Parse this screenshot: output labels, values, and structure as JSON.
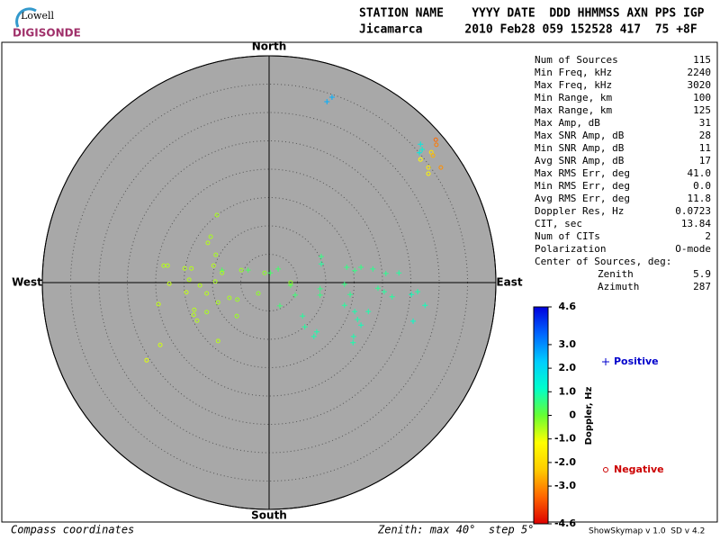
{
  "header": {
    "logo_top": "Lowell",
    "logo_bottom": "DIGISONDE",
    "columns": "STATION NAME    YYYY DATE  DDD HHMMSS AXN PPS IGP",
    "values": "Jicamarca      2010 Feb28 059 152528 417  75 +8F"
  },
  "stats": [
    [
      "Num of Sources",
      "115"
    ],
    [
      "Min Freq, kHz",
      "2240"
    ],
    [
      "Max Freq, kHz",
      "3020"
    ],
    [
      "Min Range, km",
      "100"
    ],
    [
      "Max Range, km",
      "125"
    ],
    [
      "Max Amp, dB",
      "31"
    ],
    [
      "Max SNR Amp, dB",
      "28"
    ],
    [
      "Min SNR Amp, dB",
      "11"
    ],
    [
      "Avg SNR Amp, dB",
      "17"
    ],
    [
      "Max RMS Err, deg",
      "41.0"
    ],
    [
      "Min RMS Err, deg",
      "0.0"
    ],
    [
      "Avg RMS Err, deg",
      "11.8"
    ],
    [
      "Doppler Res, Hz",
      "0.0723"
    ],
    [
      "CIT, sec",
      "13.84"
    ],
    [
      "Num of CITs",
      "2"
    ],
    [
      "Polarization",
      "O-mode"
    ]
  ],
  "center": {
    "title": "Center of Sources, deg:",
    "rows": [
      [
        "Zenith",
        "5.9"
      ],
      [
        "Azimuth",
        "287"
      ]
    ]
  },
  "footer": {
    "left": "Compass coordinates",
    "middle": "Zenith: max 40°  step 5°",
    "right": "ShowSkymap v 1.0  SD v 4.2"
  },
  "chart_data": {
    "type": "skymap",
    "compass": {
      "north": "North",
      "south": "South",
      "west": "West",
      "east": "East"
    },
    "xlim": [
      -40,
      40
    ],
    "ylim": [
      -40,
      40
    ],
    "rticks": [
      5,
      10,
      15,
      20,
      25,
      30,
      35,
      40
    ],
    "colorbar": {
      "label": "Doppler, Hz",
      "lim": [
        -4.6,
        4.6
      ],
      "ticks": [
        4.6,
        {
          "value": 3.0,
          "label": "3.0"
        },
        {
          "value": 2.0,
          "label": "2.0"
        },
        {
          "value": 1.0,
          "label": "1.0"
        },
        0,
        {
          "value": -1.0,
          "label": "-1.0"
        },
        {
          "value": -2.0,
          "label": "-2.0"
        },
        {
          "value": -3.0,
          "label": "-3.0"
        },
        -4.6
      ],
      "colors": [
        "#dd0000",
        "#ff6600",
        "#ffcc00",
        "#ffff00",
        "#66ff33",
        "#00ffcc",
        "#00ccff",
        "#0066ff",
        "#0000dd"
      ]
    },
    "series": [
      {
        "name": "Positive",
        "color": "#0000cc",
        "marker": "plus",
        "x": [
          10.2,
          11.1,
          26.7,
          27.0,
          26.5,
          0.2,
          1.6,
          3.8,
          9.2,
          13.7,
          15.1,
          16.2,
          18.3,
          20.6,
          22.9,
          19.2,
          20.3,
          21.7,
          25.1,
          26.2,
          27.5,
          25.4,
          13.3,
          14.3,
          13.3,
          15.1,
          15.6,
          16.2,
          17.5,
          14.8,
          14.9,
          7.9,
          8.4,
          5.9,
          6.3,
          1.9,
          4.6,
          9.0,
          9.0,
          -3.7,
          -8.3,
          9.2
        ],
        "y": [
          31.9,
          32.7,
          24.4,
          23.5,
          22.9,
          1.7,
          2.4,
          -0.5,
          3.3,
          2.7,
          2.1,
          2.7,
          2.4,
          1.6,
          1.7,
          -1.0,
          -1.6,
          -2.5,
          -2.1,
          -1.6,
          -4.0,
          -6.8,
          -0.3,
          -2.1,
          -4.0,
          -5.1,
          -6.5,
          -7.5,
          -5.1,
          -10.6,
          -9.5,
          -9.5,
          -8.7,
          -5.9,
          -7.8,
          -4.1,
          -2.2,
          -1.1,
          -2.2,
          2.2,
          2.2,
          4.6
        ],
        "doppler": [
          2.6,
          2.6,
          1.6,
          1.4,
          1.6,
          0.4,
          0.4,
          0.3,
          0.8,
          0.6,
          0.6,
          0.6,
          0.7,
          0.7,
          0.8,
          0.7,
          0.8,
          0.8,
          1.0,
          0.9,
          1.0,
          1.1,
          0.6,
          0.7,
          0.8,
          0.9,
          0.9,
          1.0,
          0.9,
          0.9,
          0.9,
          0.9,
          0.9,
          0.8,
          0.8,
          0.5,
          0.5,
          0.6,
          0.6,
          0.3,
          0.3,
          0.6
        ]
      },
      {
        "name": "Negative",
        "color": "#cc0000",
        "marker": "circle",
        "x": [
          -9.2,
          -10.3,
          -10.8,
          -9.4,
          -9.8,
          -8.3,
          -4.9,
          -18.6,
          -17.9,
          -17.6,
          -14.9,
          -13.7,
          -14.6,
          -13.3,
          -12.7,
          -13.2,
          -11.0,
          -19.5,
          -19.2,
          -21.6,
          -9.0,
          -5.7,
          -5.6,
          -7.0,
          -9.0,
          -12.2,
          -14.1,
          -9.5,
          -0.8,
          -1.9,
          3.8,
          -11.0,
          29.4,
          29.5,
          28.6,
          28.9,
          30.3,
          28.1,
          28.1,
          26.7
        ],
        "y": [
          11.9,
          8.1,
          7.0,
          4.9,
          3.0,
          1.7,
          2.2,
          3.0,
          3.0,
          -0.2,
          2.5,
          2.5,
          -1.7,
          -5.7,
          -6.7,
          -4.8,
          -5.2,
          -3.8,
          -11.0,
          -13.7,
          -10.3,
          -5.9,
          -3.0,
          -2.7,
          -3.5,
          -0.5,
          0.5,
          0.2,
          1.7,
          -1.9,
          0.0,
          -1.9,
          25.2,
          24.3,
          23.0,
          22.4,
          20.3,
          20.3,
          19.2,
          21.7
        ],
        "doppler": [
          -0.5,
          -0.5,
          -0.6,
          -0.5,
          -0.6,
          -0.5,
          -0.4,
          -0.6,
          -0.6,
          -0.7,
          -0.6,
          -0.6,
          -0.7,
          -0.6,
          -0.6,
          -0.6,
          -0.5,
          -0.7,
          -0.8,
          -0.9,
          -0.6,
          -0.4,
          -0.4,
          -0.5,
          -0.5,
          -0.6,
          -0.6,
          -0.5,
          -0.3,
          -0.3,
          -0.3,
          -0.6,
          -3.4,
          -3.2,
          -1.8,
          -2.6,
          -3.0,
          -1.6,
          -1.4,
          -1.2
        ]
      }
    ]
  }
}
